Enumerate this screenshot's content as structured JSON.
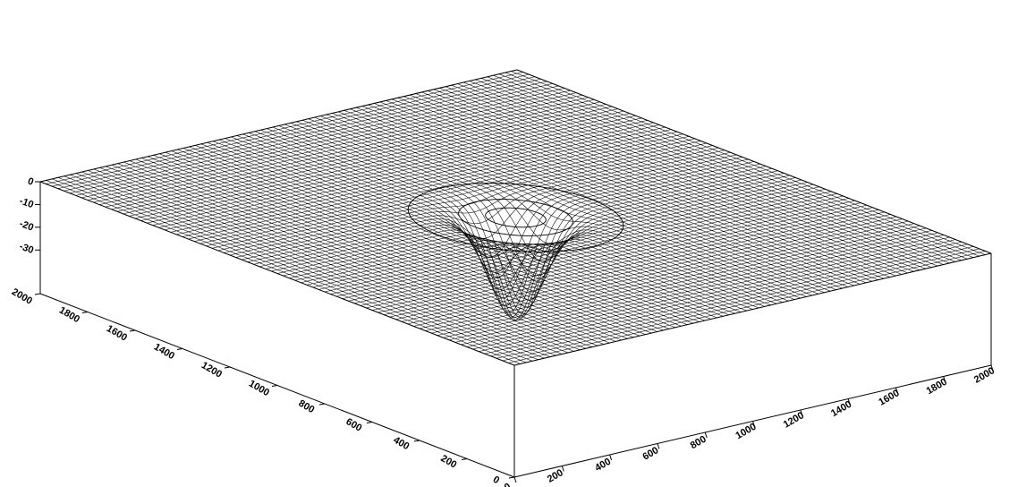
{
  "chart_data": {
    "type": "surface",
    "title": "",
    "xlabel": "",
    "ylabel": "",
    "zlabel": "",
    "x_ticks": [
      "0",
      "200",
      "400",
      "600",
      "800",
      "1000",
      "1200",
      "1400",
      "1600",
      "1800",
      "2000"
    ],
    "y_ticks": [
      "0",
      "200",
      "400",
      "600",
      "800",
      "1000",
      "1200",
      "1400",
      "1600",
      "1800",
      "2000"
    ],
    "z_ticks": [
      "0",
      "-10",
      "-20",
      "-30"
    ],
    "xlim": [
      0,
      2000
    ],
    "ylim": [
      0,
      2000
    ],
    "zlim": [
      -40,
      0
    ],
    "grid_lines": 80,
    "depression": {
      "center_x": 1000,
      "center_y": 1000,
      "max_depth": -37,
      "contour_radii": [
        90,
        170,
        320
      ]
    },
    "colors": {
      "line": "#000000",
      "background": "#ffffff",
      "surface": "#ffffff"
    }
  }
}
